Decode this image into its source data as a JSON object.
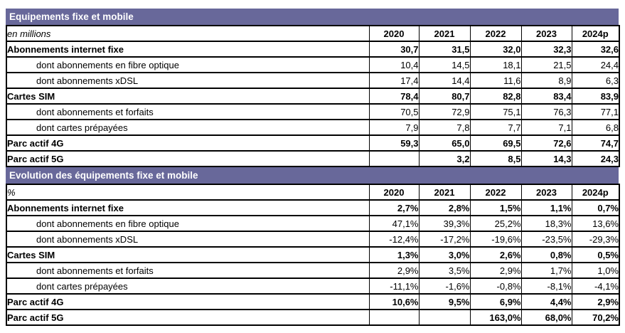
{
  "colors": {
    "header_bg": "#68689A",
    "header_text": "#FFFFFF",
    "border": "#000000",
    "text": "#000000"
  },
  "tables": [
    {
      "title": "Equipements fixe et mobile",
      "unit_label": "en millions",
      "years": [
        "2020",
        "2021",
        "2022",
        "2023",
        "2024p"
      ],
      "rows": [
        {
          "label": "Abonnements internet fixe",
          "bold": true,
          "indent": false,
          "values": [
            "30,7",
            "31,5",
            "32,0",
            "32,3",
            "32,6"
          ]
        },
        {
          "label": "dont abonnements en fibre optique",
          "bold": false,
          "indent": true,
          "values": [
            "10,4",
            "14,5",
            "18,1",
            "21,5",
            "24,4"
          ]
        },
        {
          "label": "dont abonnements xDSL",
          "bold": false,
          "indent": true,
          "values": [
            "17,4",
            "14,4",
            "11,6",
            "8,9",
            "6,3"
          ]
        },
        {
          "label": "Cartes SIM",
          "bold": true,
          "indent": false,
          "values": [
            "78,4",
            "80,7",
            "82,8",
            "83,4",
            "83,9"
          ]
        },
        {
          "label": "dont abonnements et forfaits",
          "bold": false,
          "indent": true,
          "values": [
            "70,5",
            "72,9",
            "75,1",
            "76,3",
            "77,1"
          ]
        },
        {
          "label": "dont cartes prépayées",
          "bold": false,
          "indent": true,
          "values": [
            "7,9",
            "7,8",
            "7,7",
            "7,1",
            "6,8"
          ]
        },
        {
          "label": "Parc actif 4G",
          "bold": true,
          "indent": false,
          "values": [
            "59,3",
            "65,0",
            "69,5",
            "72,6",
            "74,7"
          ]
        },
        {
          "label": "Parc actif 5G",
          "bold": true,
          "indent": false,
          "values": [
            "",
            "3,2",
            "8,5",
            "14,3",
            "24,3"
          ]
        }
      ]
    },
    {
      "title": "Evolution des équipements fixe et mobile",
      "unit_label": "%",
      "years": [
        "2020",
        "2021",
        "2022",
        "2023",
        "2024p"
      ],
      "rows": [
        {
          "label": "Abonnements internet fixe",
          "bold": true,
          "indent": false,
          "values": [
            "2,7%",
            "2,8%",
            "1,5%",
            "1,1%",
            "0,7%"
          ]
        },
        {
          "label": "dont abonnements en fibre optique",
          "bold": false,
          "indent": true,
          "values": [
            "47,1%",
            "39,3%",
            "25,2%",
            "18,3%",
            "13,6%"
          ]
        },
        {
          "label": "dont abonnements xDSL",
          "bold": false,
          "indent": true,
          "values": [
            "-12,4%",
            "-17,2%",
            "-19,6%",
            "-23,5%",
            "-29,3%"
          ]
        },
        {
          "label": "Cartes SIM",
          "bold": true,
          "indent": false,
          "values": [
            "1,3%",
            "3,0%",
            "2,6%",
            "0,8%",
            "0,5%"
          ]
        },
        {
          "label": "dont abonnements et forfaits",
          "bold": false,
          "indent": true,
          "values": [
            "2,9%",
            "3,5%",
            "2,9%",
            "1,7%",
            "1,0%"
          ]
        },
        {
          "label": "dont cartes prépayées",
          "bold": false,
          "indent": true,
          "values": [
            "-11,1%",
            "-1,6%",
            "-0,8%",
            "-8,1%",
            "-4,1%"
          ]
        },
        {
          "label": "Parc actif 4G",
          "bold": true,
          "indent": false,
          "values": [
            "10,6%",
            "9,5%",
            "6,9%",
            "4,4%",
            "2,9%"
          ]
        },
        {
          "label": "Parc actif 5G",
          "bold": true,
          "indent": false,
          "values": [
            "",
            "",
            "163,0%",
            "68,0%",
            "70,2%"
          ]
        }
      ]
    }
  ]
}
